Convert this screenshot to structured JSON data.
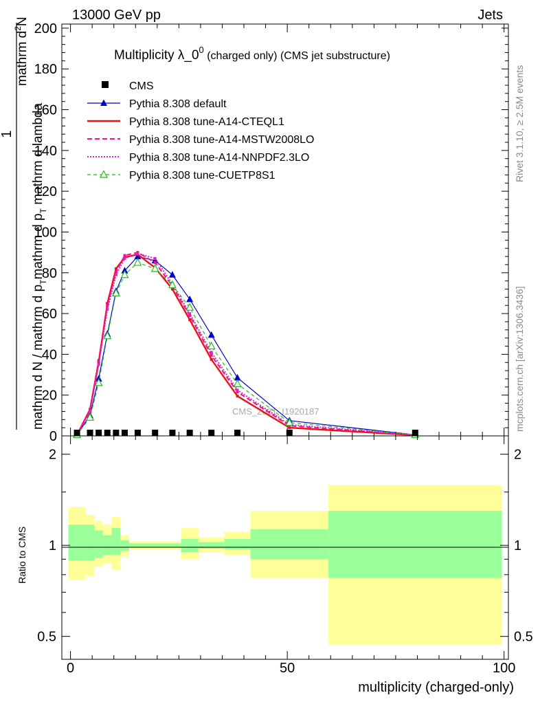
{
  "header": {
    "left": "13000 GeV pp",
    "right": "Jets"
  },
  "side_labels": {
    "rivet": "Rivet 3.1.10, ≥ 2.5M events",
    "mcplots": "mcplots.cern.ch [arXiv:1306.3436]"
  },
  "watermark": "CMS_2021_I1920187",
  "chart_data": [
    {
      "type": "line",
      "title_main": "Multiplicity λ_0",
      "title_sup": "0",
      "title_rest": " (charged only) (CMS jet substructure)",
      "ylabel_top": "1",
      "ylabel_numerator": "mathrm d",
      "ylabel_numerator_sup": "2",
      "ylabel_numerator_end": "N",
      "ylabel_den1": "mathrm d N / mathrm d p",
      "ylabel_den1_sub": "T",
      "ylabel_den2": "mathrm d p",
      "ylabel_den2_sub": "T",
      "ylabel_den3": " mathrm d lambda",
      "xlim": [
        -2,
        101
      ],
      "ylim": [
        0,
        202
      ],
      "yticks": [
        0,
        20,
        40,
        60,
        80,
        100,
        120,
        140,
        160,
        180,
        200
      ],
      "ytick_labels": [
        "0",
        "20",
        "40",
        "60",
        "80",
        "100",
        "120",
        "140",
        "160",
        "180",
        "200"
      ],
      "legend": {
        "cms": "CMS",
        "default": "Pythia 8.308 default",
        "a14cteq": "Pythia 8.308 tune-A14-CTEQL1",
        "a14mstw": "Pythia 8.308 tune-A14-MSTW2008LO",
        "a14nnpdf": "Pythia 8.308 tune-A14-NNPDF2.3LO",
        "cuetp8s1": "Pythia 8.308 tune-CUETP8S1"
      },
      "x": [
        1.5,
        4.5,
        6.5,
        8.5,
        10.5,
        12.5,
        15.5,
        19.5,
        23.5,
        27.5,
        32.5,
        38.5,
        50.5,
        79.5
      ],
      "cms_points": [
        0.5,
        0.5,
        0.5,
        0.5,
        0.5,
        0.5,
        0.5,
        0.5,
        0.5,
        0.5,
        0.5,
        0.5,
        0.5,
        0.5
      ],
      "series": [
        {
          "key": "default",
          "name": "Pythia 8.308 default",
          "color": "#0000cc",
          "dash": "",
          "marker": "tri-filled",
          "values": [
            0.5,
            10,
            28,
            50,
            71,
            81,
            88,
            86,
            79,
            67,
            49.5,
            28.5,
            7.5,
            0.5
          ]
        },
        {
          "key": "a14cteq",
          "name": "Pythia 8.308 tune-A14-CTEQL1",
          "color": "#ee1111",
          "dash": "",
          "marker": "none",
          "values": [
            0.5,
            13,
            36,
            65,
            82,
            87.5,
            89,
            82.5,
            72,
            57,
            37.5,
            19.5,
            4,
            0.3
          ]
        },
        {
          "key": "a14mstw",
          "name": "Pythia 8.308 tune-A14-MSTW2008LO",
          "color": "#ee1188",
          "dash": "7,4",
          "marker": "none",
          "values": [
            0.5,
            13,
            37,
            64,
            80.5,
            88.5,
            90,
            85,
            73.5,
            59,
            39.5,
            21.5,
            5,
            0.4
          ]
        },
        {
          "key": "a14nnpdf",
          "name": "Pythia 8.308 tune-A14-NNPDF2.3LO",
          "color": "#dd22cc",
          "dash": "2,2",
          "marker": "none",
          "values": [
            0.5,
            12,
            35,
            62,
            79,
            87,
            89.5,
            87,
            74.5,
            60,
            41,
            22.5,
            5.5,
            0.4
          ]
        },
        {
          "key": "cuetp8s1",
          "name": "Pythia 8.308 tune-CUETP8S1",
          "color": "#22bb22",
          "dash": "5,4",
          "marker": "tri-open",
          "values": [
            0.5,
            9,
            26,
            49,
            70,
            79,
            85,
            82,
            74,
            63,
            44,
            25.5,
            6.5,
            0.5
          ]
        }
      ]
    },
    {
      "type": "area",
      "ylabel": "Ratio to CMS",
      "xlabel": "multiplicity (charged-only)",
      "xlim": [
        -2,
        101
      ],
      "ylim": [
        0.42,
        2.3
      ],
      "xticks": [
        0,
        50,
        100
      ],
      "xtick_labels": [
        "0",
        "50",
        "100"
      ],
      "yticks": [
        0.5,
        1,
        2
      ],
      "ytick_labels": [
        "0.5",
        "1",
        "2"
      ],
      "bins": [
        {
          "lo": -0.5,
          "hi": 3.5,
          "y_lo": 0.77,
          "y_hi": 1.34,
          "g_lo": 0.89,
          "g_hi": 1.17
        },
        {
          "lo": 3.5,
          "hi": 5.5,
          "y_lo": 0.79,
          "y_hi": 1.26,
          "g_lo": 0.89,
          "g_hi": 1.17
        },
        {
          "lo": 5.5,
          "hi": 7.5,
          "y_lo": 0.85,
          "y_hi": 1.2,
          "g_lo": 0.91,
          "g_hi": 1.12
        },
        {
          "lo": 7.5,
          "hi": 9.5,
          "y_lo": 0.87,
          "y_hi": 1.17,
          "g_lo": 0.93,
          "g_hi": 1.08
        },
        {
          "lo": 9.5,
          "hi": 11.5,
          "y_lo": 0.83,
          "y_hi": 1.24,
          "g_lo": 0.93,
          "g_hi": 1.14
        },
        {
          "lo": 11.5,
          "hi": 13.5,
          "y_lo": 0.92,
          "y_hi": 1.08,
          "g_lo": 0.96,
          "g_hi": 1.04
        },
        {
          "lo": 13.5,
          "hi": 25.5,
          "y_lo": 0.97,
          "y_hi": 1.03,
          "g_lo": 0.985,
          "g_hi": 1.015
        },
        {
          "lo": 25.5,
          "hi": 29.5,
          "y_lo": 0.9,
          "y_hi": 1.14,
          "g_lo": 0.95,
          "g_hi": 1.05
        },
        {
          "lo": 29.5,
          "hi": 35.5,
          "y_lo": 0.95,
          "y_hi": 1.06,
          "g_lo": 0.975,
          "g_hi": 1.025
        },
        {
          "lo": 35.5,
          "hi": 41.5,
          "y_lo": 0.93,
          "y_hi": 1.11,
          "g_lo": 0.97,
          "g_hi": 1.05
        },
        {
          "lo": 41.5,
          "hi": 59.5,
          "y_lo": 0.78,
          "y_hi": 1.3,
          "g_lo": 0.9,
          "g_hi": 1.13
        },
        {
          "lo": 59.5,
          "hi": 99.5,
          "y_lo": 0.47,
          "y_hi": 1.58,
          "g_lo": 0.78,
          "g_hi": 1.3
        }
      ]
    }
  ]
}
